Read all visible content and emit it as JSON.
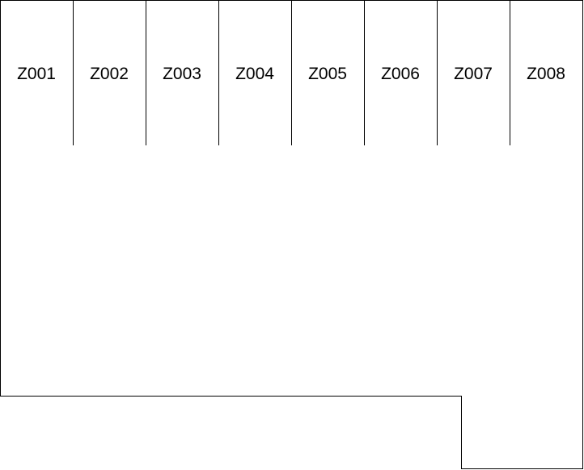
{
  "zones": [
    {
      "label": "Z001"
    },
    {
      "label": "Z002"
    },
    {
      "label": "Z003"
    },
    {
      "label": "Z004"
    },
    {
      "label": "Z005"
    },
    {
      "label": "Z006"
    },
    {
      "label": "Z007"
    },
    {
      "label": "Z008"
    }
  ],
  "colors": {
    "stroke": "#000000",
    "background": "#ffffff",
    "text": "#000000"
  }
}
